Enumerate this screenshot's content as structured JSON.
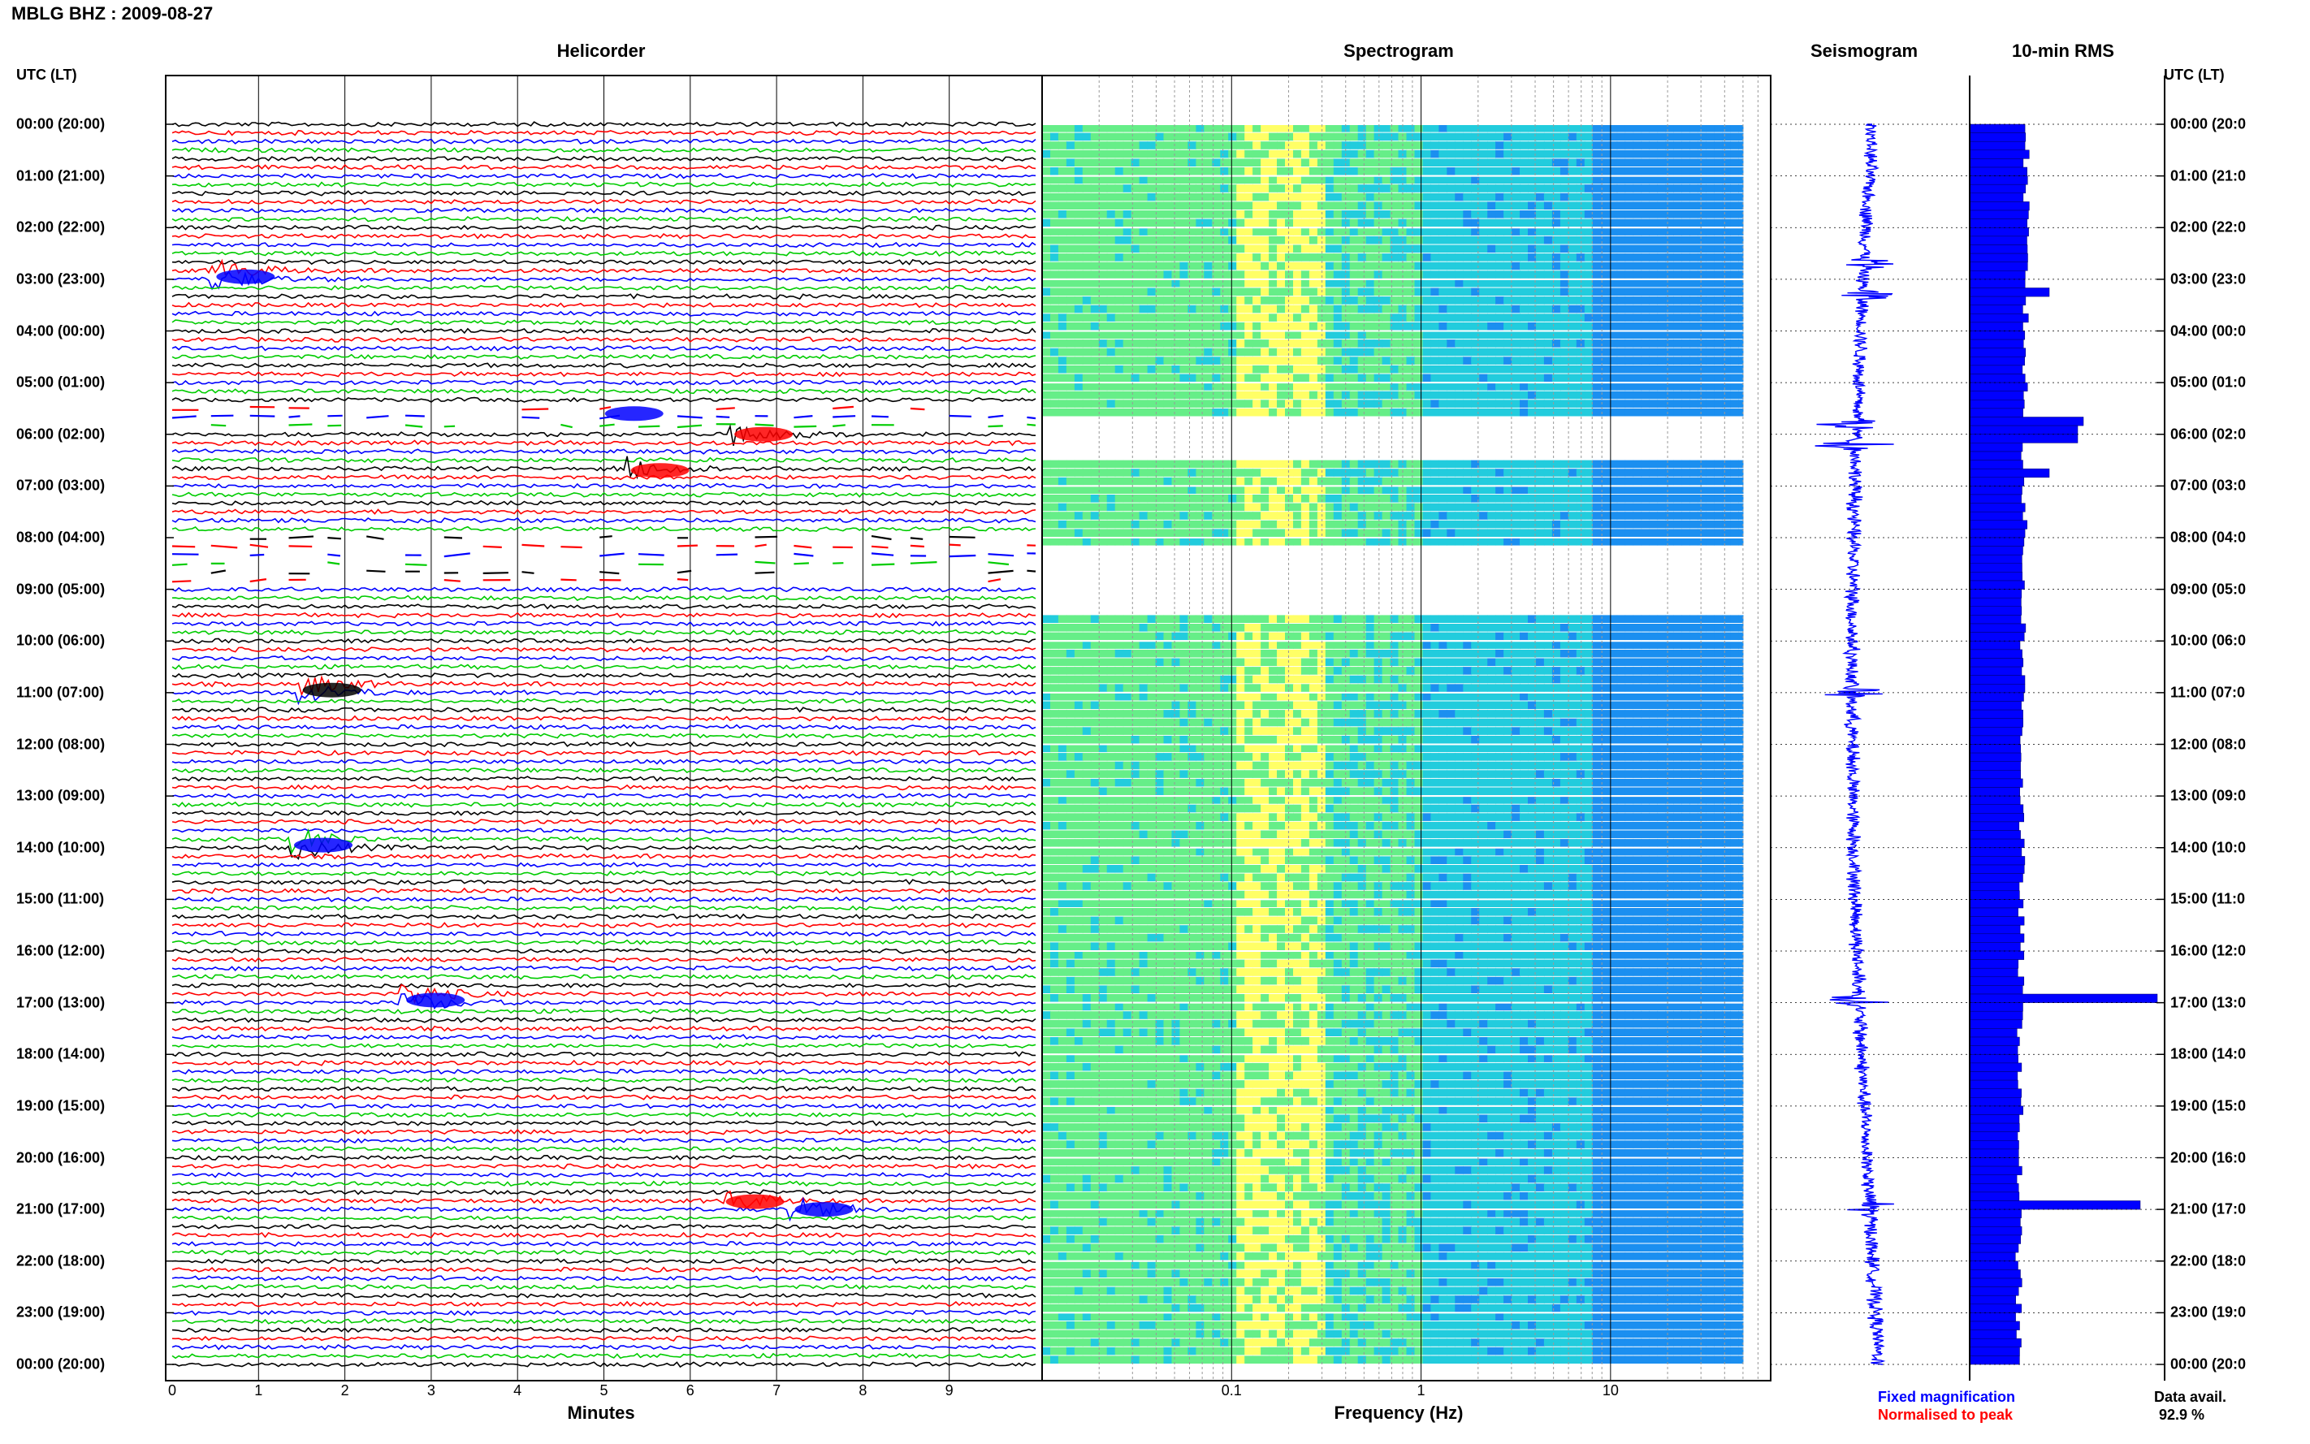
{
  "window_title": "MBLG BHZ : 2009-08-27",
  "panels": {
    "helicorder": "Helicorder",
    "spectrogram": "Spectrogram",
    "seismogram": "Seismogram",
    "rms": "10-min RMS"
  },
  "axis_titles": {
    "left": "UTC (LT)",
    "right": "UTC (LT)",
    "helicorder_x": "Minutes",
    "spectrogram_x": "Frequency (Hz)"
  },
  "hour_labels": [
    "00:00 (20:00)",
    "01:00 (21:00)",
    "02:00 (22:00)",
    "03:00 (23:00)",
    "04:00 (00:00)",
    "05:00 (01:00)",
    "06:00 (02:00)",
    "07:00 (03:00)",
    "08:00 (04:00)",
    "09:00 (05:00)",
    "10:00 (06:00)",
    "11:00 (07:00)",
    "12:00 (08:00)",
    "13:00 (09:00)",
    "14:00 (10:00)",
    "15:00 (11:00)",
    "16:00 (12:00)",
    "17:00 (13:00)",
    "18:00 (14:00)",
    "19:00 (15:00)",
    "20:00 (16:00)",
    "21:00 (17:00)",
    "22:00 (18:00)",
    "23:00 (19:00)",
    "00:00 (20:00)"
  ],
  "right_hour_labels": [
    "00:00 (20:0",
    "01:00 (21:0",
    "02:00 (22:0",
    "03:00 (23:0",
    "04:00 (00:0",
    "05:00 (01:0",
    "06:00 (02:0",
    "07:00 (03:0",
    "08:00 (04:0",
    "09:00 (05:0",
    "10:00 (06:0",
    "11:00 (07:0",
    "12:00 (08:0",
    "13:00 (09:0",
    "14:00 (10:0",
    "15:00 (11:0",
    "16:00 (12:0",
    "17:00 (13:0",
    "18:00 (14:0",
    "19:00 (15:0",
    "20:00 (16:0",
    "21:00 (17:0",
    "22:00 (18:0",
    "23:00 (19:0",
    "00:00 (20:0"
  ],
  "legend": {
    "fixed": "Fixed magnification",
    "normalised": "Normalised to peak",
    "fixed_color": "#0000ff",
    "normalised_color": "#ff0000"
  },
  "data_avail": {
    "label": "Data avail.",
    "value": "92.9 %"
  },
  "chart_data": [
    {
      "type": "line",
      "name": "helicorder",
      "xlabel": "Minutes",
      "xlim": [
        0,
        10
      ],
      "x_ticks": [
        "0",
        "1",
        "2",
        "3",
        "4",
        "5",
        "6",
        "7",
        "8",
        "9"
      ],
      "y_unit": "hour of day (UTC)",
      "ylim": [
        0,
        24
      ],
      "trace_colors": [
        "#000000",
        "#ff0000",
        "#0000ff",
        "#00cc00"
      ],
      "traces_per_hour": 6,
      "gaps_hours": [
        [
          5.5,
          6.0
        ],
        [
          8.0,
          9.0
        ]
      ],
      "events": [
        {
          "hour": 2.95,
          "minute": 0.5,
          "color": "#0000ff"
        },
        {
          "hour": 5.6,
          "minute": 5.0,
          "color": "#0000ff"
        },
        {
          "hour": 6.0,
          "minute": 6.5,
          "color": "#ff0000"
        },
        {
          "hour": 6.7,
          "minute": 5.3,
          "color": "#ff0000"
        },
        {
          "hour": 10.95,
          "minute": 1.5,
          "color": "#000000"
        },
        {
          "hour": 13.95,
          "minute": 1.4,
          "color": "#0000ff"
        },
        {
          "hour": 16.95,
          "minute": 2.7,
          "color": "#0000ff"
        },
        {
          "hour": 20.85,
          "minute": 6.4,
          "color": "#ff0000"
        },
        {
          "hour": 21.0,
          "minute": 7.2,
          "color": "#0000ff"
        }
      ]
    },
    {
      "type": "heatmap",
      "name": "spectrogram",
      "xlabel": "Frequency (Hz)",
      "x_scale": "log",
      "xlim": [
        0.01,
        70
      ],
      "x_ticks": [
        "0.1",
        "1",
        "10"
      ],
      "ylim": [
        0,
        24
      ],
      "gaps_hours": [
        [
          5.7,
          6.55
        ],
        [
          8.1,
          9.4
        ]
      ],
      "colormap": [
        "#ffff66",
        "#66ee88",
        "#22ccdd",
        "#1b8ff0",
        "#0b30e6"
      ]
    },
    {
      "type": "line",
      "name": "seismogram",
      "ylim": [
        0,
        24
      ],
      "events_hours": [
        2.7,
        3.3,
        5.8,
        6.2,
        11.0,
        16.95,
        20.95
      ]
    },
    {
      "type": "bar",
      "name": "10-min RMS",
      "ylim": [
        0,
        24
      ],
      "bins_per_hour": 6,
      "baseline": 1.0,
      "peaks": [
        {
          "hour": 5.7,
          "value": 2.0
        },
        {
          "hour": 6.0,
          "value": 1.9
        },
        {
          "hour": 6.7,
          "value": 1.4
        },
        {
          "hour": 16.95,
          "value": 3.3
        },
        {
          "hour": 20.85,
          "value": 3.0
        },
        {
          "hour": 3.2,
          "value": 1.4
        }
      ]
    }
  ]
}
